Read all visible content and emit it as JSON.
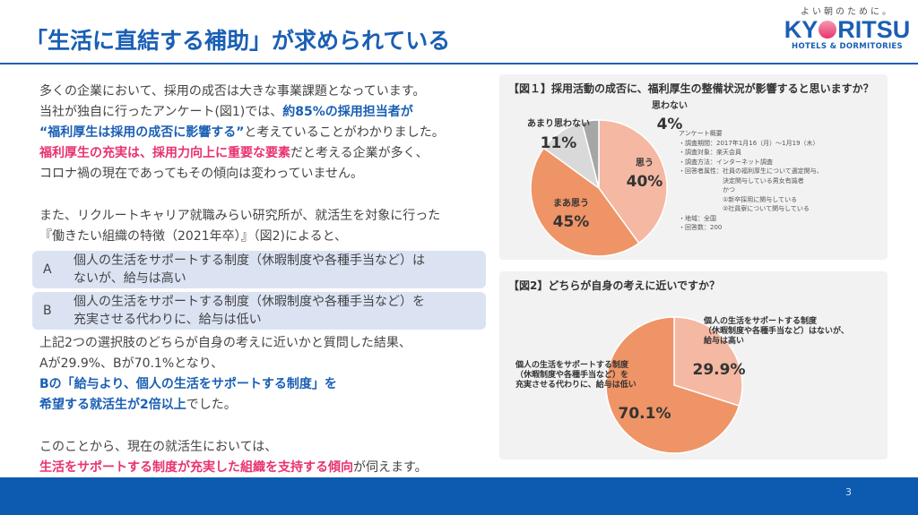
{
  "title": "「生活に直結する補助」が求められている",
  "logo": {
    "tagline": "よい朝のために。",
    "brand_left": "KY",
    "brand_right": "RITSU",
    "sub": "HOTELS & DORMITORIES"
  },
  "body": {
    "para1": [
      [
        {
          "t": "多くの企業において、採用の成否は大きな事業課題となっています。"
        }
      ],
      [
        {
          "t": "当社が独自に行ったアンケート(図1)では、"
        },
        {
          "t": "約85%の採用担当者が",
          "s": "blue"
        }
      ],
      [
        {
          "t": "“福利厚生は採用の成否に影響する”",
          "s": "blue"
        },
        {
          "t": "と考えていることがわかりました。"
        }
      ],
      [
        {
          "t": "福利厚生の充実は、採用力向上に重要な要素",
          "s": "pink"
        },
        {
          "t": "だと考える企業が多く、"
        }
      ],
      [
        {
          "t": "コロナ禍の現在であってもその傾向は変わっていません。"
        }
      ]
    ],
    "para2": [
      [
        {
          "t": "また、リクルートキャリア就職みらい研究所が、就活生を対象に行った"
        }
      ],
      [
        {
          "t": "『働きたい組織の特徴（2021年卒）』（図2)によると、"
        }
      ]
    ],
    "choices": [
      {
        "letter": "A",
        "lines": [
          "個人の生活をサポートする制度（休暇制度や各種手当など）は",
          "ないが、給与は高い"
        ]
      },
      {
        "letter": "B",
        "lines": [
          "個人の生活をサポートする制度（休暇制度や各種手当など）を",
          "充実させる代わりに、給与は低い"
        ]
      }
    ],
    "para3": [
      [
        {
          "t": "上記2つの選択肢のどちらが自身の考えに近いかと質問した結果、"
        }
      ],
      [
        {
          "t": "Aが29.9%、Bが70.1%となり、"
        }
      ],
      [
        {
          "t": "Bの「給与より、個人の生活をサポートする制度」を",
          "s": "blue"
        }
      ],
      [
        {
          "t": "希望する就活生が2倍以上",
          "s": "blue"
        },
        {
          "t": "でした。"
        }
      ]
    ],
    "para4": [
      [
        {
          "t": "このことから、現在の就活生においては、"
        }
      ],
      [
        {
          "t": "生活をサポートする制度が充実した組織を支持する傾向",
          "s": "pink"
        },
        {
          "t": "が伺えます。"
        }
      ]
    ]
  },
  "fig1": {
    "title": "【図１】採用活動の成否に、福利厚生の整備状況が影響すると思いますか？",
    "notes": [
      "アンケート概要",
      "・調査期間：2017年1月16（月）～1月19（木）",
      "・調査対象：楽天会員",
      "・調査方法：インターネット調査",
      "・回答者属性：社員の福利厚生について選定関与、",
      "　　　　　　　決定関与している男女有識者",
      "　　　　　　　かつ",
      "　　　　　　　①新卒採用に関与している",
      "　　　　　　　②社員寮について関与している",
      "・地域：全国",
      "・回答数：200"
    ]
  },
  "fig2": {
    "title": "【図2】どちらが自身の考えに近いですか？"
  },
  "chart_data": [
    {
      "type": "pie",
      "title": "【図１】採用活動の成否に、福利厚生の整備状況が影響すると思いますか？",
      "categories": [
        "思う",
        "まあ思う",
        "あまり思わない",
        "思わない"
      ],
      "values": [
        40,
        45,
        11,
        4
      ],
      "labels": [
        "40%",
        "45%",
        "11%",
        "4%"
      ],
      "colors": [
        "#f4b8a3",
        "#ef9466",
        "#d9d9d9",
        "#a6a6a6"
      ]
    },
    {
      "type": "pie",
      "title": "【図2】どちらが自身の考えに近いですか？",
      "categories": [
        "個人の生活をサポートする制度（休暇制度や各種手当など）はないが、給与は高い",
        "個人の生活をサポートする制度（休暇制度や各種手当など）を充実させる代わりに、給与は低い"
      ],
      "values": [
        29.9,
        70.1
      ],
      "labels": [
        "29.9%",
        "70.1%"
      ],
      "colors": [
        "#f4b8a3",
        "#ef9466"
      ]
    }
  ],
  "page_number": "3",
  "colors": {
    "brand_blue": "#1a5fb4",
    "highlight_pink": "#e8336e",
    "footer": "#0d5bb0"
  }
}
